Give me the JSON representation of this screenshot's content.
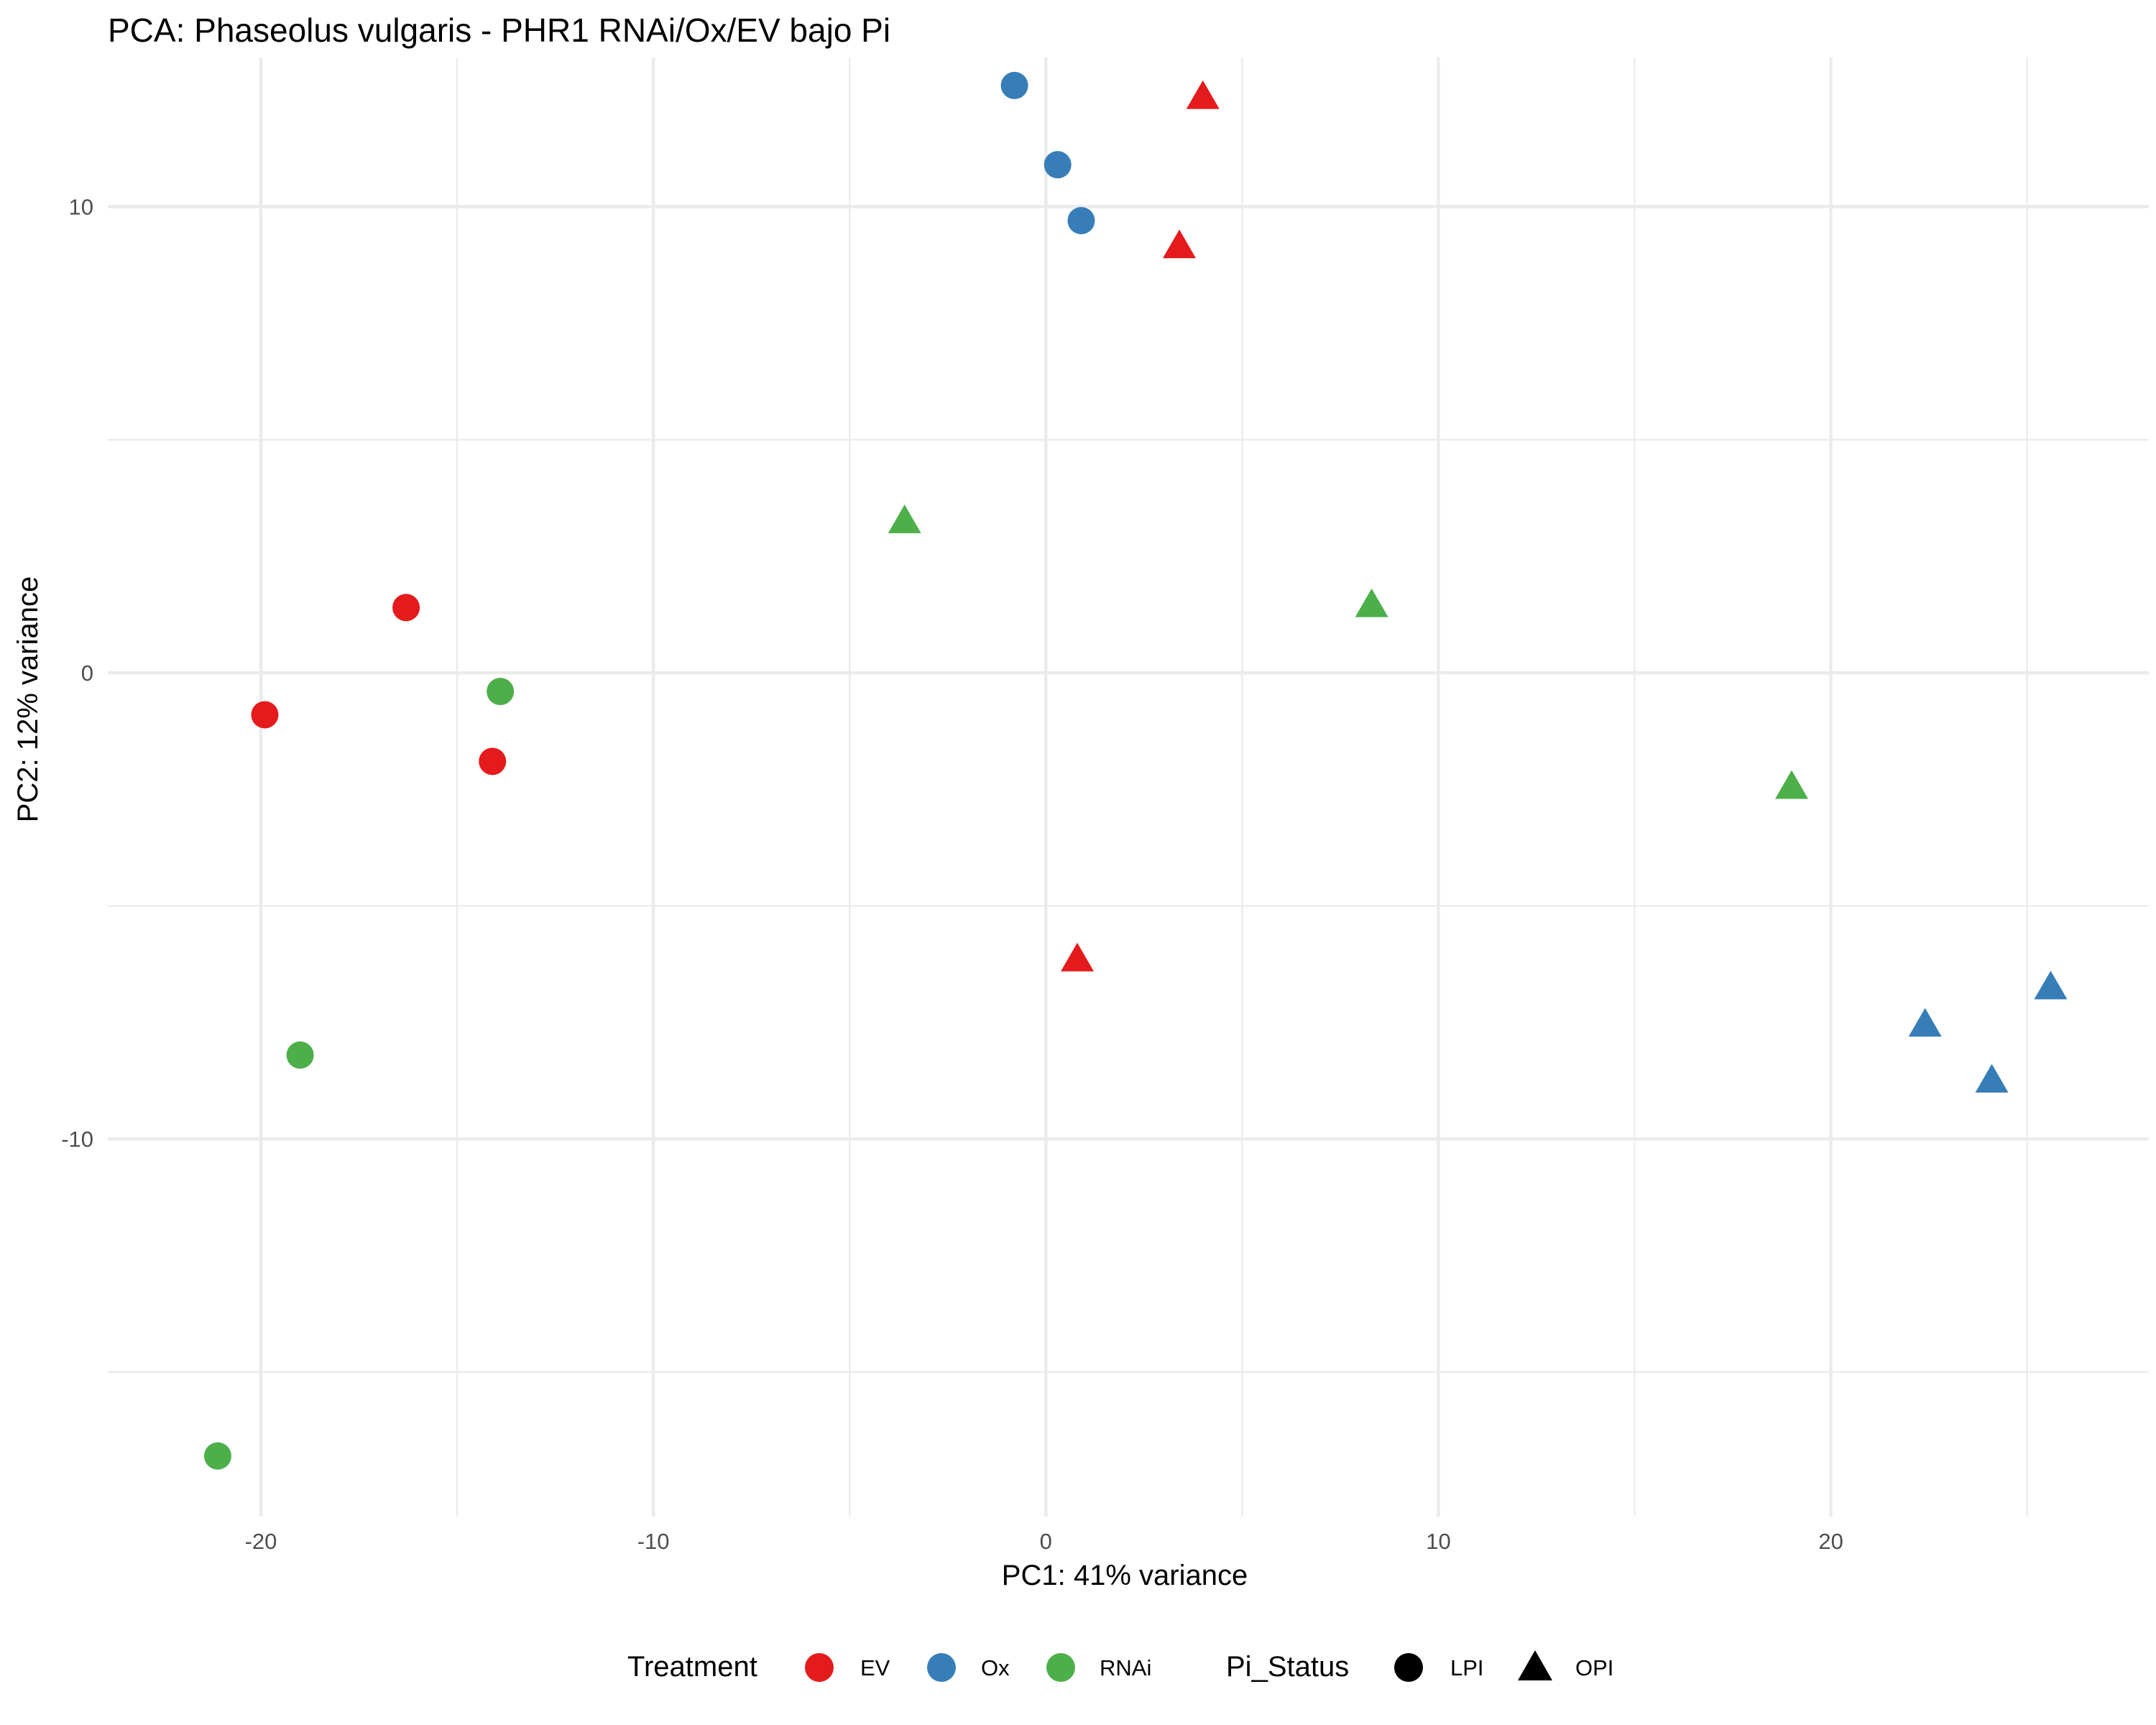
{
  "chart_data": {
    "type": "scatter",
    "title": "PCA: Phaseolus vulgaris - PHR1 RNAi/Ox/EV bajo Pi",
    "xlabel": "PC1: 41% variance",
    "ylabel": "PC2: 12% variance",
    "xlim": [
      -23.9,
      28.1
    ],
    "ylim": [
      -18.1,
      13.2
    ],
    "x_ticks": [
      -20,
      -10,
      0,
      10,
      20
    ],
    "y_ticks": [
      -10,
      0,
      10
    ],
    "x_tick_labels": [
      "-20",
      "-10",
      "0",
      "10",
      "20"
    ],
    "y_tick_labels": [
      "-10",
      "0",
      "10"
    ],
    "grid": true,
    "legend_position": "bottom",
    "legend": {
      "color_title": "Treatment",
      "shape_title": "Pi_Status",
      "treatments": [
        {
          "label": "EV",
          "color": "#E41A1C"
        },
        {
          "label": "Ox",
          "color": "#377EB8"
        },
        {
          "label": "RNAi",
          "color": "#4DAF4A"
        }
      ],
      "pi_status": [
        {
          "label": "LPI",
          "shape": "circle"
        },
        {
          "label": "OPI",
          "shape": "triangle"
        }
      ]
    },
    "points": [
      {
        "x": -16.3,
        "y": 1.4,
        "treatment": "EV",
        "pi": "LPI"
      },
      {
        "x": -19.9,
        "y": -0.9,
        "treatment": "EV",
        "pi": "LPI"
      },
      {
        "x": -14.1,
        "y": -1.9,
        "treatment": "EV",
        "pi": "LPI"
      },
      {
        "x": -0.8,
        "y": 12.6,
        "treatment": "Ox",
        "pi": "LPI"
      },
      {
        "x": 0.3,
        "y": 10.9,
        "treatment": "Ox",
        "pi": "LPI"
      },
      {
        "x": 0.9,
        "y": 9.7,
        "treatment": "Ox",
        "pi": "LPI"
      },
      {
        "x": -13.9,
        "y": -0.4,
        "treatment": "RNAi",
        "pi": "LPI"
      },
      {
        "x": -19.0,
        "y": -8.2,
        "treatment": "RNAi",
        "pi": "LPI"
      },
      {
        "x": -21.1,
        "y": -16.8,
        "treatment": "RNAi",
        "pi": "LPI"
      },
      {
        "x": 4.0,
        "y": 12.3,
        "treatment": "EV",
        "pi": "OPI"
      },
      {
        "x": 3.4,
        "y": 9.1,
        "treatment": "EV",
        "pi": "OPI"
      },
      {
        "x": 0.8,
        "y": -6.2,
        "treatment": "EV",
        "pi": "OPI"
      },
      {
        "x": 22.4,
        "y": -7.6,
        "treatment": "Ox",
        "pi": "OPI"
      },
      {
        "x": 24.1,
        "y": -8.8,
        "treatment": "Ox",
        "pi": "OPI"
      },
      {
        "x": 25.6,
        "y": -6.8,
        "treatment": "Ox",
        "pi": "OPI"
      },
      {
        "x": -3.6,
        "y": 3.2,
        "treatment": "RNAi",
        "pi": "OPI"
      },
      {
        "x": 8.3,
        "y": 1.4,
        "treatment": "RNAi",
        "pi": "OPI"
      },
      {
        "x": 19.0,
        "y": -2.5,
        "treatment": "RNAi",
        "pi": "OPI"
      }
    ]
  }
}
